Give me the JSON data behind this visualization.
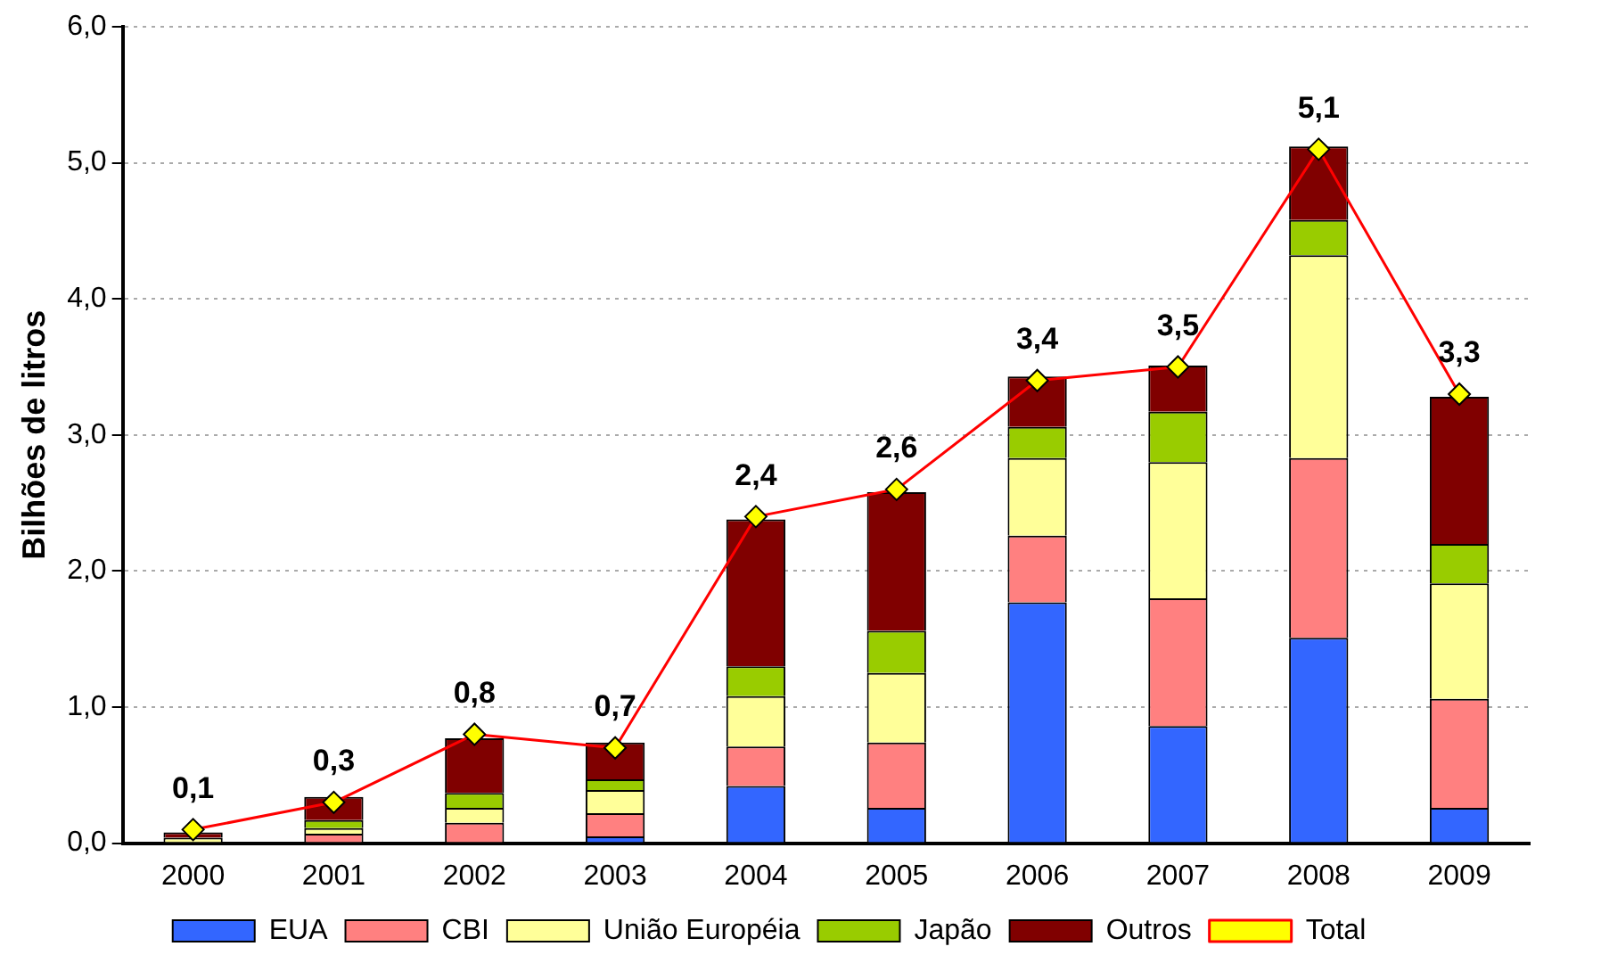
{
  "chart_data": {
    "type": "bar",
    "stacked": true,
    "ylabel": "Bilhões de litros",
    "categories": [
      "2000",
      "2001",
      "2002",
      "2003",
      "2004",
      "2005",
      "2006",
      "2007",
      "2008",
      "2009"
    ],
    "series": [
      {
        "name": "EUA",
        "color": "#3366ff",
        "values": [
          0,
          0,
          null,
          0.05,
          0.42,
          0.26,
          1.77,
          0.86,
          1.51,
          0.26
        ]
      },
      {
        "name": "CBI",
        "color": "#ff8080",
        "values": [
          null,
          0.07,
          0.15,
          0.17,
          0.29,
          0.48,
          0.49,
          0.94,
          1.32,
          0.8
        ]
      },
      {
        "name": "União Européia",
        "color": "#ffff99",
        "values": [
          0.04,
          0.04,
          0.11,
          0.17,
          0.37,
          0.51,
          0.57,
          1.0,
          1.49,
          0.85
        ]
      },
      {
        "name": "Japão",
        "color": "#99cc00",
        "values": [
          null,
          0.06,
          0.11,
          0.08,
          0.22,
          0.31,
          0.23,
          0.37,
          0.26,
          0.29
        ]
      },
      {
        "name": "Outros",
        "color": "#800000",
        "values": [
          0.04,
          0.17,
          0.4,
          0.27,
          1.08,
          1.02,
          0.37,
          0.34,
          0.54,
          1.08
        ]
      },
      {
        "name": "Total",
        "type": "line",
        "color": "#ff0000",
        "marker": "diamond",
        "values": [
          0.1,
          0.3,
          0.8,
          0.7,
          2.4,
          2.6,
          3.4,
          3.5,
          5.1,
          3.3
        ],
        "value_labels": [
          "0,1",
          "0,3",
          "0,8",
          "0,7",
          "2,4",
          "2,6",
          "3,4",
          "3,5",
          "5,1",
          "3,3"
        ]
      }
    ],
    "ylim": [
      0,
      6
    ],
    "yticks": [
      {
        "value": 0,
        "label": "0,0"
      },
      {
        "value": 1,
        "label": "1,0"
      },
      {
        "value": 2,
        "label": "2,0"
      },
      {
        "value": 3,
        "label": "3,0"
      },
      {
        "value": 4,
        "label": "4,0"
      },
      {
        "value": 5,
        "label": "5,0"
      },
      {
        "value": 6,
        "label": "6,0"
      }
    ],
    "grid": "y",
    "legend": "bottom"
  }
}
